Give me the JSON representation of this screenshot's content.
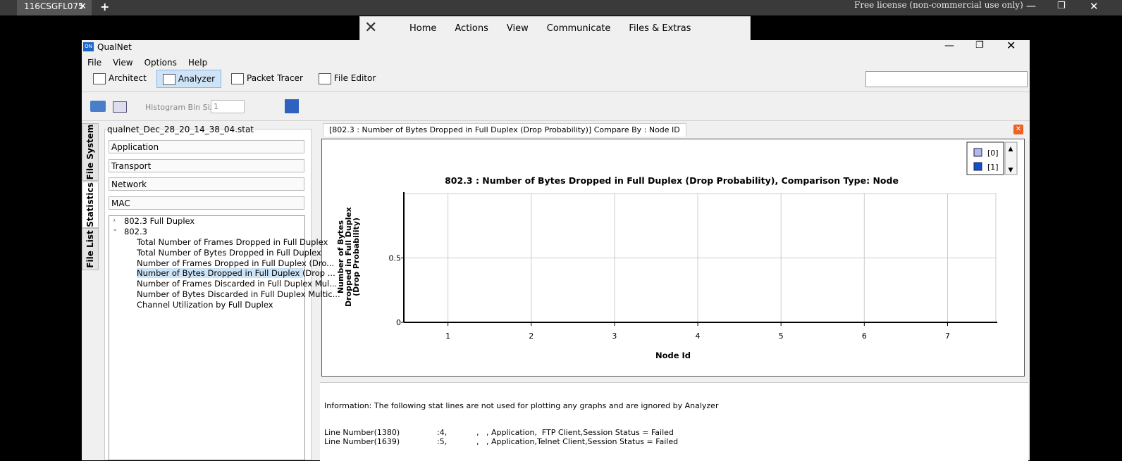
{
  "tabbar": {
    "tab": "116CSGFL075",
    "license": "Free license (non-commercial use only)"
  },
  "remote_toolbar": {
    "items": [
      "Home",
      "Actions",
      "View",
      "Communicate",
      "Files & Extras"
    ]
  },
  "window": {
    "title": "QualNet",
    "menu": [
      "File",
      "View",
      "Options",
      "Help"
    ],
    "tools": [
      "Architect",
      "Analyzer",
      "Packet Tracer",
      "File Editor"
    ],
    "histogram_label": "Histogram Bin Size",
    "histogram_value": "1"
  },
  "side_tabs": [
    "File System",
    "Statistics",
    "File List"
  ],
  "stats": {
    "file": "qualnet_Dec_28_20_14_38_04.stat",
    "groups": [
      "Application",
      "Transport",
      "Network",
      "MAC"
    ],
    "tree": [
      {
        "label": "802.3 Full Duplex"
      },
      {
        "label": "802.3",
        "children": [
          "Total Number of Frames Dropped in Full Duplex",
          "Total Number of Bytes Dropped in Full Duplex",
          "Number of Frames Dropped in Full Duplex (Dro...",
          "Number of Bytes Dropped in Full Duplex (Drop ...",
          "Number of Frames Discarded in Full Duplex Mul...",
          "Number of Bytes Discarded in Full Duplex Multic...",
          "Channel Utilization by Full Duplex"
        ]
      }
    ]
  },
  "chart": {
    "tab": "[802.3 :  Number of Bytes Dropped in Full Duplex (Drop Probability)] Compare By : Node ID",
    "title": "802.3 :  Number of Bytes Dropped in Full Duplex (Drop Probability), Comparison Type: Node",
    "y_label": [
      "Number of Bytes",
      "Dropped in Full Duplex",
      "(Drop Probability)"
    ],
    "x_label": "Node Id",
    "xlim": [
      0.47,
      7.58
    ],
    "ylim": [
      0,
      1
    ],
    "xticks": [
      1,
      2,
      3,
      4,
      5,
      6,
      7
    ],
    "yticks": [
      0,
      0.5
    ],
    "legend": [
      {
        "name": "[0]",
        "color": "#b0b8f0"
      },
      {
        "name": "[1]",
        "color": "#1050d0"
      }
    ]
  },
  "info": {
    "heading": "Information: The following stat lines are not used for plotting any graphs and are ignored by Analyzer",
    "lines": [
      [
        "Line Number(1380)",
        ":4,",
        ",   , Application,  FTP Client,Session Status = Failed"
      ],
      [
        "Line Number(1639)",
        ":5,",
        ",   , Application,Telnet Client,Session Status = Failed"
      ]
    ]
  }
}
